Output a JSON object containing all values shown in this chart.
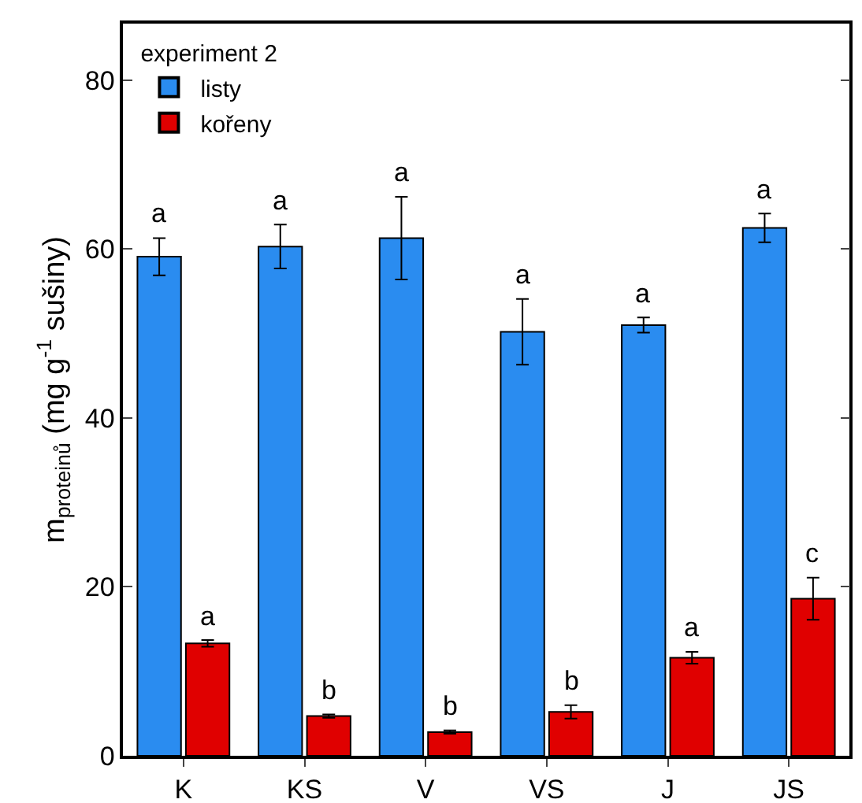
{
  "chart_data": {
    "type": "bar",
    "ylabel": "m$_{proteinů}$ (mg g$^{-1}$ sušiny)",
    "legend_title": "experiment 2",
    "legend": "top left",
    "grid": false,
    "categories": [
      "K",
      "KS",
      "V",
      "VS",
      "J",
      "JS"
    ],
    "ylim": [
      0,
      86.7
    ],
    "yticks": [
      0,
      20,
      40,
      60,
      80
    ],
    "series": [
      {
        "name": "listy",
        "color": "#2a8cf0",
        "values": [
          59.1,
          60.3,
          61.3,
          50.2,
          51.0,
          62.5
        ],
        "errors": [
          2.2,
          2.6,
          4.9,
          3.9,
          0.9,
          1.7
        ]
      },
      {
        "name": "kořeny",
        "color": "#e00000",
        "values": [
          13.3,
          4.7,
          2.8,
          5.2,
          11.6,
          18.6
        ],
        "errors": [
          0.4,
          0.2,
          0.2,
          0.8,
          0.7,
          2.5
        ]
      }
    ],
    "annotations": [
      {
        "text": "a",
        "x": "K",
        "y": 59.1
      },
      {
        "text": "a",
        "x": "KS",
        "y": 60.3
      },
      {
        "text": "a",
        "x": "V",
        "y": 61.3
      },
      {
        "text": "a",
        "x": "VS",
        "y": 50.2
      },
      {
        "text": "a",
        "x": "J",
        "y": 51.0
      },
      {
        "text": "a",
        "x": "JS",
        "y": 62.5
      },
      {
        "text": "a",
        "x": "K",
        "y": 13.3
      },
      {
        "text": "b",
        "x": "KS",
        "y": 4.7
      },
      {
        "text": "b",
        "x": "V",
        "y": 2.8
      },
      {
        "text": "b",
        "x": "VS",
        "y": 5.2
      },
      {
        "text": "a",
        "x": "J",
        "y": 11.6
      },
      {
        "text": "c",
        "x": "JS",
        "y": 18.6
      }
    ]
  }
}
